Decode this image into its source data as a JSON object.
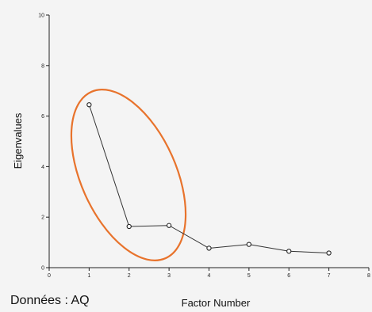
{
  "chart_data": {
    "type": "line",
    "xlabel": "Factor Number",
    "ylabel": "Eigenvalues",
    "xlim": [
      0,
      8
    ],
    "ylim": [
      0,
      10
    ],
    "x_ticks": [
      "0",
      "1",
      "2",
      "3",
      "4",
      "5",
      "6",
      "7",
      "8"
    ],
    "y_ticks": [
      "0",
      "2",
      "4",
      "6",
      "8",
      "10"
    ],
    "grid": false,
    "series": [
      {
        "x": [
          1,
          2,
          3,
          4,
          5,
          6,
          7
        ],
        "y": [
          6.45,
          1.63,
          1.67,
          0.77,
          0.92,
          0.65,
          0.58
        ],
        "color": "#333333"
      }
    ],
    "highlight_color": "#e8732c",
    "footnote": "Données : AQ"
  }
}
